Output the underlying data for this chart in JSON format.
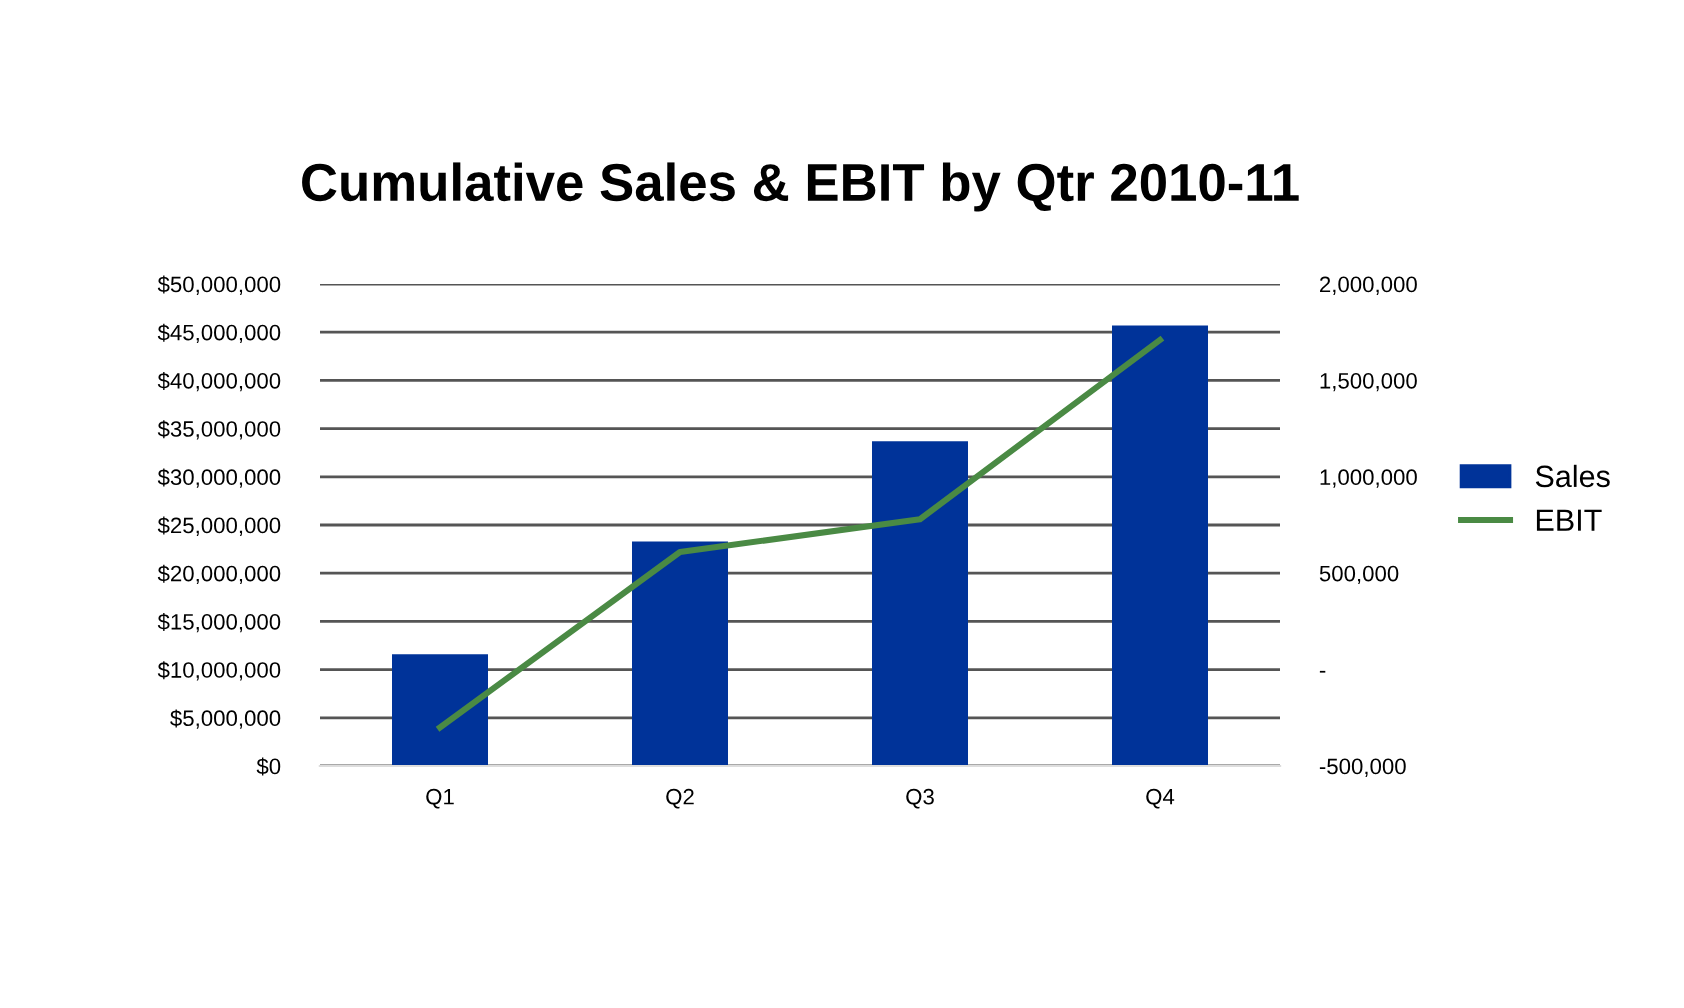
{
  "chart_data": {
    "type": "bar",
    "title": "Cumulative Sales & EBIT by Qtr 2010-11",
    "categories": [
      "Q1",
      "Q2",
      "Q3",
      "Q4"
    ],
    "series": [
      {
        "name": "Sales",
        "color": "#003399",
        "values": [
          11600000,
          23300000,
          33700000,
          45700000
        ]
      },
      {
        "name": "EBIT",
        "type": "line",
        "axis": "y2",
        "color": "#4a8a44",
        "values": [
          -300000,
          610000,
          780000,
          1710000
        ]
      }
    ],
    "ylim": [
      0,
      50000000
    ],
    "yticks": [
      {
        "value": 0,
        "label": "$0"
      },
      {
        "value": 5000000,
        "label": "$5,000,000"
      },
      {
        "value": 10000000,
        "label": "$10,000,000"
      },
      {
        "value": 15000000,
        "label": "$15,000,000"
      },
      {
        "value": 20000000,
        "label": "$20,000,000"
      },
      {
        "value": 25000000,
        "label": "$25,000,000"
      },
      {
        "value": 30000000,
        "label": "$30,000,000"
      },
      {
        "value": 35000000,
        "label": "$35,000,000"
      },
      {
        "value": 40000000,
        "label": "$40,000,000"
      },
      {
        "value": 45000000,
        "label": "$45,000,000"
      },
      {
        "value": 50000000,
        "label": "$50,000,000"
      }
    ],
    "y2lim": [
      -500000,
      2000000
    ],
    "y2ticks": [
      {
        "value": -500000,
        "label": "-500,000"
      },
      {
        "value": 0,
        "label": "-"
      },
      {
        "value": 500000,
        "label": "500,000"
      },
      {
        "value": 1000000,
        "label": "1,000,000"
      },
      {
        "value": 1500000,
        "label": "1,500,000"
      },
      {
        "value": 2000000,
        "label": "2,000,000"
      }
    ],
    "grid": "y",
    "legend": "right",
    "marker": "none",
    "line_style": "solid"
  }
}
